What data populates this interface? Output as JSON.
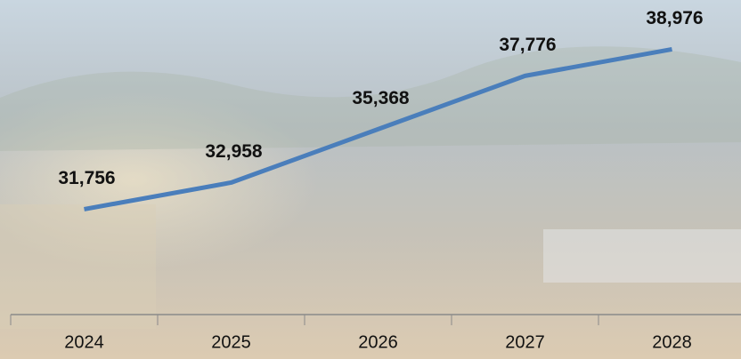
{
  "chart_data": {
    "type": "line",
    "categories": [
      "2024",
      "2025",
      "2026",
      "2027",
      "2028"
    ],
    "values": [
      31756,
      32958,
      35368,
      37776,
      38976
    ],
    "value_labels": [
      "31,756",
      "32,958",
      "35,368",
      "37,776",
      "38,976"
    ],
    "color": "#4a7ebb",
    "ylim": [
      27000,
      41200
    ]
  }
}
